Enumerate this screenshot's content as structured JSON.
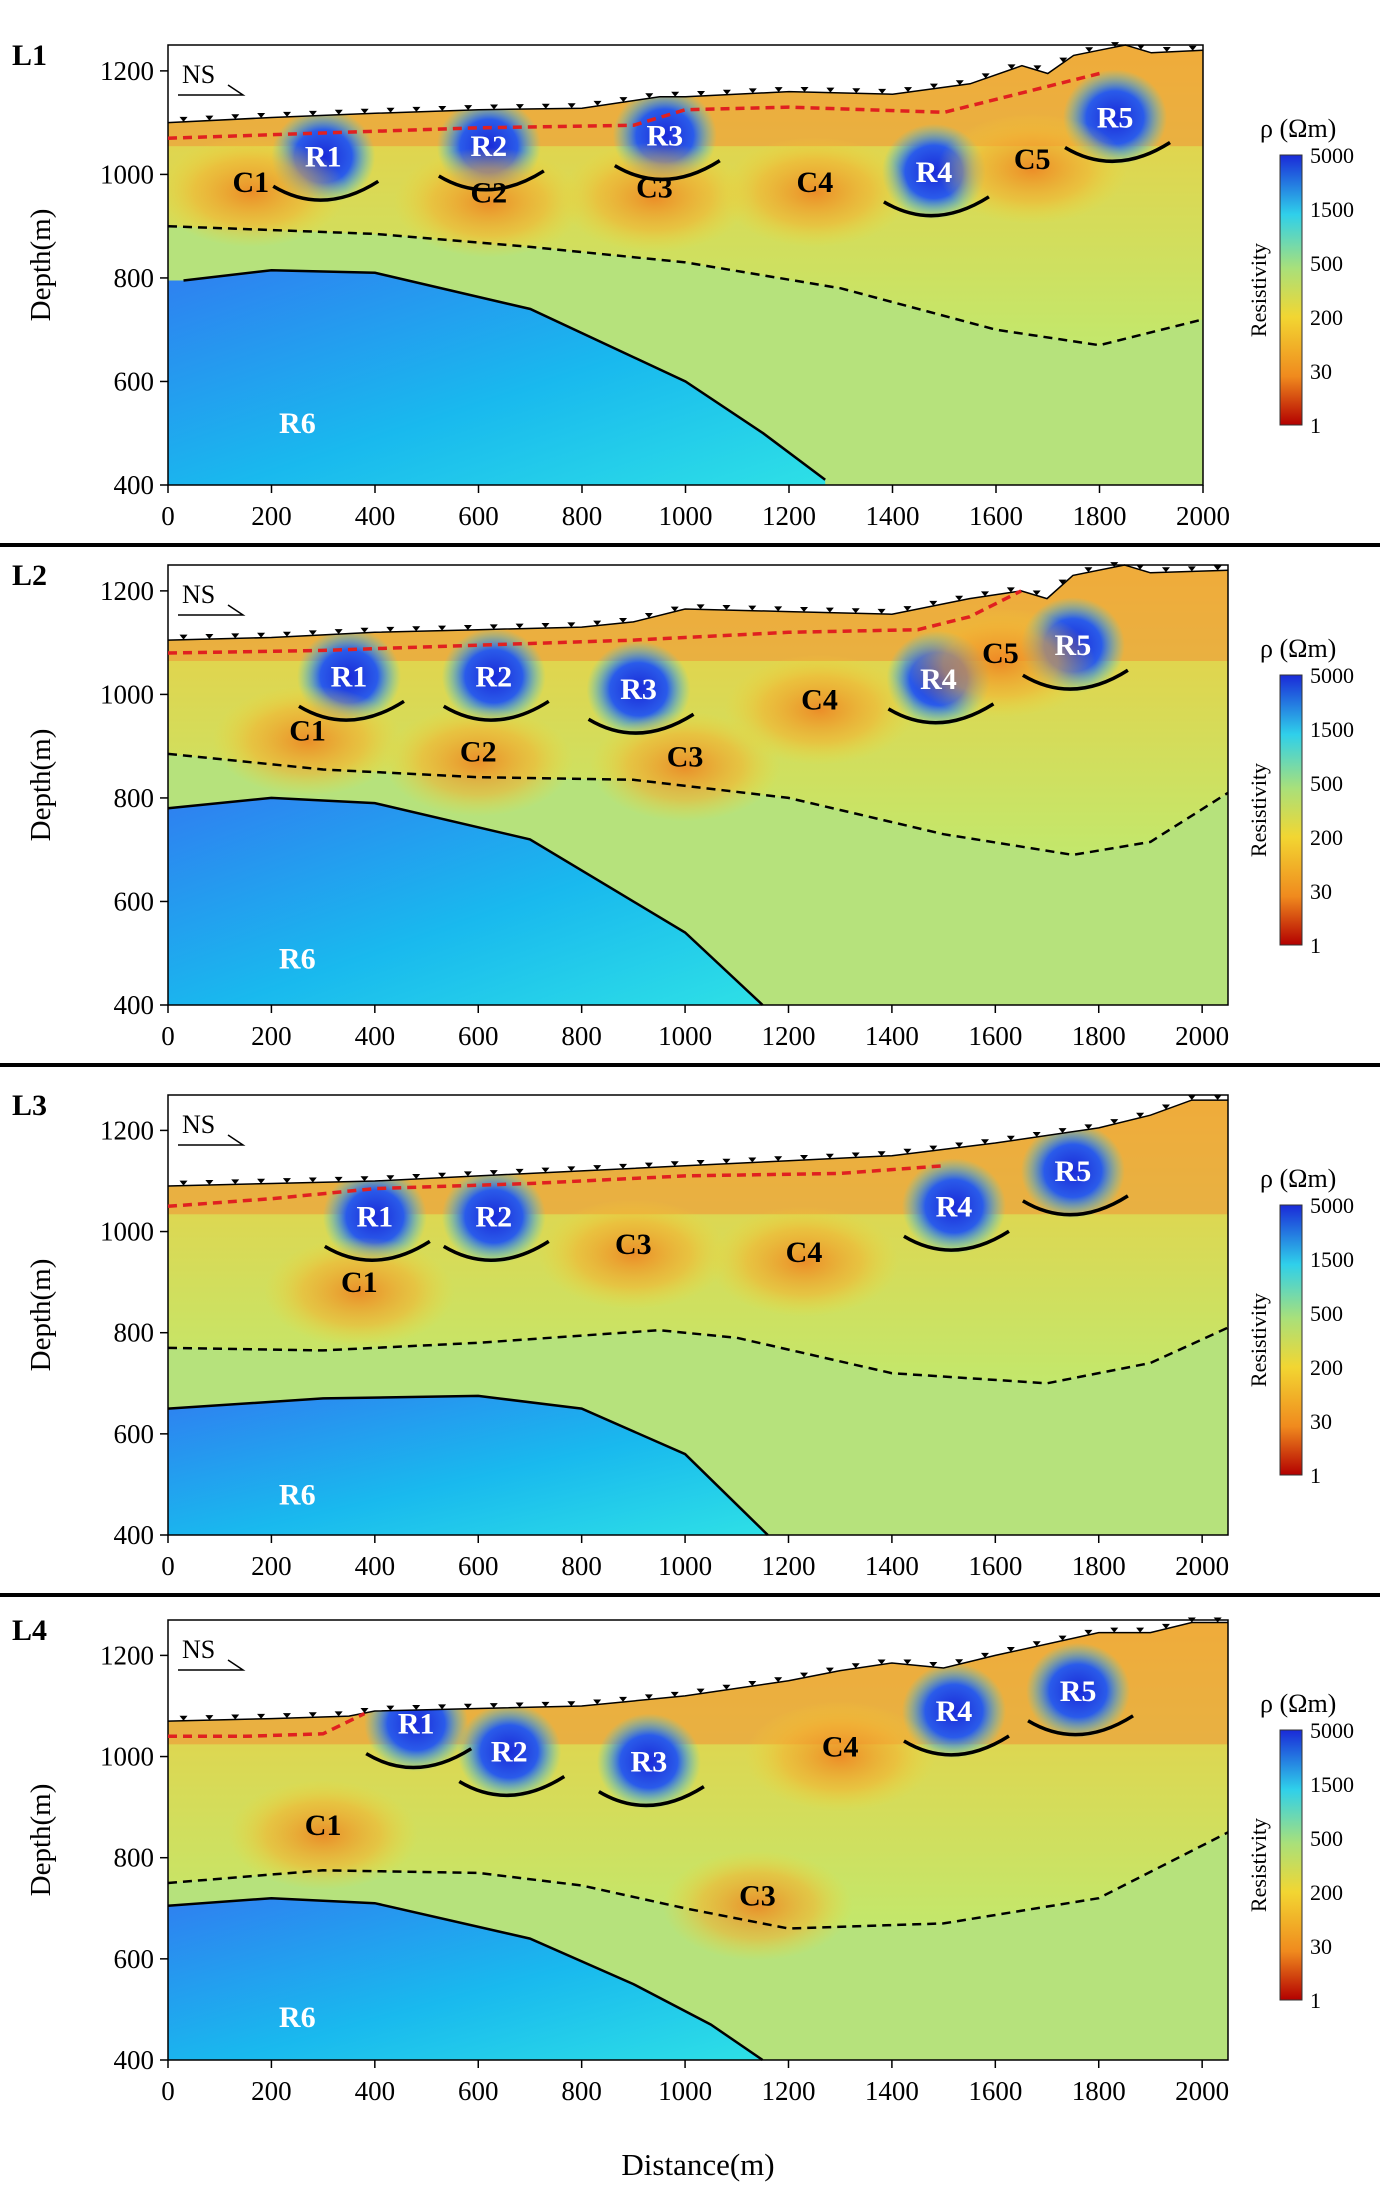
{
  "figure": {
    "x_axis_title": "Distance(m)",
    "y_axis_title": "Depth(m)",
    "colorbar_title": "ρ (Ωm)",
    "colorbar_label": "Resistivity",
    "direction_label": "NS",
    "colorbar_ticks": [
      1,
      30,
      200,
      500,
      1500,
      5000
    ],
    "colors": {
      "very_low": "#b30000",
      "low": "#f08a1e",
      "moderate": "#f2d632",
      "mid": "#a9e07a",
      "high": "#2fd0ea",
      "very_high": "#1a2ad8",
      "boundary_solid": "#000000",
      "boundary_dashed": "#000000",
      "weathering_line": "#e02020"
    }
  },
  "chart_data": [
    {
      "type": "heatmap",
      "id": "L1",
      "title": "L1",
      "xlabel": "Distance(m)",
      "ylabel": "Depth(m)",
      "xlim": [
        0,
        2000
      ],
      "ylim": [
        400,
        1250
      ],
      "x_ticks": [
        0,
        200,
        400,
        600,
        800,
        1000,
        1200,
        1400,
        1600,
        1800,
        2000
      ],
      "y_ticks": [
        400,
        600,
        800,
        1000,
        1200
      ],
      "topography": [
        [
          0,
          1100
        ],
        [
          200,
          1110
        ],
        [
          400,
          1118
        ],
        [
          600,
          1125
        ],
        [
          800,
          1128
        ],
        [
          950,
          1150
        ],
        [
          1000,
          1150
        ],
        [
          1200,
          1160
        ],
        [
          1400,
          1155
        ],
        [
          1550,
          1175
        ],
        [
          1650,
          1210
        ],
        [
          1700,
          1195
        ],
        [
          1750,
          1230
        ],
        [
          1800,
          1240
        ],
        [
          1850,
          1250
        ],
        [
          1900,
          1235
        ],
        [
          2000,
          1240
        ]
      ],
      "weathering_boundary": [
        [
          0,
          1070
        ],
        [
          300,
          1080
        ],
        [
          600,
          1090
        ],
        [
          900,
          1095
        ],
        [
          1000,
          1125
        ],
        [
          1200,
          1130
        ],
        [
          1500,
          1120
        ],
        [
          1700,
          1170
        ],
        [
          1800,
          1195
        ]
      ],
      "deep_boundary": [
        [
          0,
          900
        ],
        [
          400,
          885
        ],
        [
          700,
          860
        ],
        [
          1000,
          830
        ],
        [
          1300,
          780
        ],
        [
          1600,
          700
        ],
        [
          1800,
          670
        ],
        [
          2000,
          720
        ]
      ],
      "bedrock_boundary": [
        [
          30,
          795
        ],
        [
          200,
          815
        ],
        [
          400,
          810
        ],
        [
          700,
          740
        ],
        [
          1000,
          600
        ],
        [
          1150,
          500
        ],
        [
          1270,
          410
        ]
      ],
      "anomalies": [
        {
          "label": "R1",
          "kind": "resistive",
          "x": 300,
          "depth": 1035
        },
        {
          "label": "R2",
          "kind": "resistive",
          "x": 620,
          "depth": 1055
        },
        {
          "label": "R3",
          "kind": "resistive",
          "x": 960,
          "depth": 1075
        },
        {
          "label": "R4",
          "kind": "resistive",
          "x": 1480,
          "depth": 1005
        },
        {
          "label": "R5",
          "kind": "resistive",
          "x": 1830,
          "depth": 1110
        },
        {
          "label": "R6",
          "kind": "resistive",
          "x": 250,
          "depth": 520
        },
        {
          "label": "C1",
          "kind": "conductive",
          "x": 160,
          "depth": 985
        },
        {
          "label": "C2",
          "kind": "conductive",
          "x": 620,
          "depth": 965
        },
        {
          "label": "C3",
          "kind": "conductive",
          "x": 940,
          "depth": 975
        },
        {
          "label": "C4",
          "kind": "conductive",
          "x": 1250,
          "depth": 985
        },
        {
          "label": "C5",
          "kind": "conductive",
          "x": 1670,
          "depth": 1030
        }
      ]
    },
    {
      "type": "heatmap",
      "id": "L2",
      "title": "L2",
      "xlabel": "Distance(m)",
      "ylabel": "Depth(m)",
      "xlim": [
        0,
        2050
      ],
      "ylim": [
        400,
        1250
      ],
      "x_ticks": [
        0,
        200,
        400,
        600,
        800,
        1000,
        1200,
        1400,
        1600,
        1800,
        2000
      ],
      "y_ticks": [
        400,
        600,
        800,
        1000,
        1200
      ],
      "topography": [
        [
          0,
          1105
        ],
        [
          200,
          1110
        ],
        [
          400,
          1120
        ],
        [
          600,
          1125
        ],
        [
          800,
          1130
        ],
        [
          900,
          1140
        ],
        [
          1000,
          1165
        ],
        [
          1200,
          1160
        ],
        [
          1400,
          1155
        ],
        [
          1550,
          1185
        ],
        [
          1650,
          1200
        ],
        [
          1700,
          1185
        ],
        [
          1750,
          1230
        ],
        [
          1850,
          1250
        ],
        [
          1900,
          1235
        ],
        [
          2050,
          1240
        ]
      ],
      "weathering_boundary": [
        [
          0,
          1080
        ],
        [
          300,
          1085
        ],
        [
          600,
          1095
        ],
        [
          900,
          1105
        ],
        [
          1200,
          1120
        ],
        [
          1450,
          1125
        ],
        [
          1550,
          1150
        ],
        [
          1650,
          1200
        ]
      ],
      "deep_boundary": [
        [
          0,
          885
        ],
        [
          300,
          855
        ],
        [
          600,
          840
        ],
        [
          900,
          835
        ],
        [
          1200,
          800
        ],
        [
          1500,
          730
        ],
        [
          1750,
          690
        ],
        [
          1900,
          715
        ],
        [
          2050,
          810
        ]
      ],
      "bedrock_boundary": [
        [
          0,
          780
        ],
        [
          200,
          800
        ],
        [
          400,
          790
        ],
        [
          700,
          720
        ],
        [
          1000,
          540
        ],
        [
          1150,
          400
        ]
      ],
      "anomalies": [
        {
          "label": "R1",
          "kind": "resistive",
          "x": 350,
          "depth": 1035
        },
        {
          "label": "R2",
          "kind": "resistive",
          "x": 630,
          "depth": 1035
        },
        {
          "label": "R3",
          "kind": "resistive",
          "x": 910,
          "depth": 1010
        },
        {
          "label": "R4",
          "kind": "resistive",
          "x": 1490,
          "depth": 1030
        },
        {
          "label": "R5",
          "kind": "resistive",
          "x": 1750,
          "depth": 1095
        },
        {
          "label": "R6",
          "kind": "resistive",
          "x": 250,
          "depth": 490
        },
        {
          "label": "C1",
          "kind": "conductive",
          "x": 270,
          "depth": 930
        },
        {
          "label": "C2",
          "kind": "conductive",
          "x": 600,
          "depth": 890
        },
        {
          "label": "C3",
          "kind": "conductive",
          "x": 1000,
          "depth": 880
        },
        {
          "label": "C4",
          "kind": "conductive",
          "x": 1260,
          "depth": 990
        },
        {
          "label": "C5",
          "kind": "conductive",
          "x": 1610,
          "depth": 1080
        }
      ]
    },
    {
      "type": "heatmap",
      "id": "L3",
      "title": "L3",
      "xlabel": "Distance(m)",
      "ylabel": "Depth(m)",
      "xlim": [
        0,
        2050
      ],
      "ylim": [
        400,
        1270
      ],
      "x_ticks": [
        0,
        200,
        400,
        600,
        800,
        1000,
        1200,
        1400,
        1600,
        1800,
        2000
      ],
      "y_ticks": [
        400,
        600,
        800,
        1000,
        1200
      ],
      "topography": [
        [
          0,
          1090
        ],
        [
          200,
          1095
        ],
        [
          400,
          1100
        ],
        [
          600,
          1110
        ],
        [
          800,
          1120
        ],
        [
          1000,
          1130
        ],
        [
          1200,
          1140
        ],
        [
          1400,
          1150
        ],
        [
          1600,
          1175
        ],
        [
          1800,
          1205
        ],
        [
          1900,
          1230
        ],
        [
          1980,
          1260
        ],
        [
          2050,
          1260
        ]
      ],
      "weathering_boundary": [
        [
          0,
          1050
        ],
        [
          200,
          1065
        ],
        [
          400,
          1085
        ],
        [
          700,
          1095
        ],
        [
          1000,
          1110
        ],
        [
          1300,
          1115
        ],
        [
          1500,
          1130
        ]
      ],
      "deep_boundary": [
        [
          0,
          770
        ],
        [
          300,
          765
        ],
        [
          600,
          780
        ],
        [
          950,
          805
        ],
        [
          1100,
          790
        ],
        [
          1400,
          720
        ],
        [
          1700,
          700
        ],
        [
          1900,
          740
        ],
        [
          2050,
          810
        ]
      ],
      "bedrock_boundary": [
        [
          0,
          650
        ],
        [
          300,
          670
        ],
        [
          600,
          675
        ],
        [
          800,
          650
        ],
        [
          1000,
          560
        ],
        [
          1100,
          460
        ],
        [
          1160,
          400
        ]
      ],
      "anomalies": [
        {
          "label": "R1",
          "kind": "resistive",
          "x": 400,
          "depth": 1030
        },
        {
          "label": "R2",
          "kind": "resistive",
          "x": 630,
          "depth": 1030
        },
        {
          "label": "R4",
          "kind": "resistive",
          "x": 1520,
          "depth": 1050
        },
        {
          "label": "R5",
          "kind": "resistive",
          "x": 1750,
          "depth": 1120
        },
        {
          "label": "R6",
          "kind": "resistive",
          "x": 250,
          "depth": 480
        },
        {
          "label": "C1",
          "kind": "conductive",
          "x": 370,
          "depth": 900
        },
        {
          "label": "C3",
          "kind": "conductive",
          "x": 900,
          "depth": 975
        },
        {
          "label": "C4",
          "kind": "conductive",
          "x": 1230,
          "depth": 960
        }
      ]
    },
    {
      "type": "heatmap",
      "id": "L4",
      "title": "L4",
      "xlabel": "Distance(m)",
      "ylabel": "Depth(m)",
      "xlim": [
        0,
        2050
      ],
      "ylim": [
        400,
        1270
      ],
      "x_ticks": [
        0,
        200,
        400,
        600,
        800,
        1000,
        1200,
        1400,
        1600,
        1800,
        2000
      ],
      "y_ticks": [
        400,
        600,
        800,
        1000,
        1200
      ],
      "topography": [
        [
          0,
          1070
        ],
        [
          200,
          1075
        ],
        [
          350,
          1080
        ],
        [
          400,
          1090
        ],
        [
          600,
          1095
        ],
        [
          800,
          1100
        ],
        [
          1000,
          1120
        ],
        [
          1200,
          1150
        ],
        [
          1300,
          1170
        ],
        [
          1400,
          1185
        ],
        [
          1500,
          1175
        ],
        [
          1600,
          1200
        ],
        [
          1800,
          1245
        ],
        [
          1900,
          1245
        ],
        [
          1980,
          1265
        ],
        [
          2050,
          1265
        ]
      ],
      "weathering_boundary": [
        [
          0,
          1040
        ],
        [
          150,
          1040
        ],
        [
          300,
          1045
        ],
        [
          380,
          1085
        ]
      ],
      "deep_boundary": [
        [
          0,
          750
        ],
        [
          300,
          775
        ],
        [
          600,
          770
        ],
        [
          800,
          745
        ],
        [
          1000,
          700
        ],
        [
          1200,
          660
        ],
        [
          1500,
          670
        ],
        [
          1800,
          720
        ],
        [
          2050,
          850
        ]
      ],
      "bedrock_boundary": [
        [
          0,
          705
        ],
        [
          200,
          720
        ],
        [
          400,
          710
        ],
        [
          700,
          640
        ],
        [
          900,
          550
        ],
        [
          1050,
          470
        ],
        [
          1150,
          400
        ]
      ],
      "anomalies": [
        {
          "label": "R1",
          "kind": "resistive",
          "x": 480,
          "depth": 1065
        },
        {
          "label": "R2",
          "kind": "resistive",
          "x": 660,
          "depth": 1010
        },
        {
          "label": "R3",
          "kind": "resistive",
          "x": 930,
          "depth": 990
        },
        {
          "label": "R4",
          "kind": "resistive",
          "x": 1520,
          "depth": 1090
        },
        {
          "label": "R5",
          "kind": "resistive",
          "x": 1760,
          "depth": 1130
        },
        {
          "label": "R6",
          "kind": "resistive",
          "x": 250,
          "depth": 485
        },
        {
          "label": "C1",
          "kind": "conductive",
          "x": 300,
          "depth": 865
        },
        {
          "label": "C3",
          "kind": "conductive",
          "x": 1140,
          "depth": 725
        },
        {
          "label": "C4",
          "kind": "conductive",
          "x": 1300,
          "depth": 1020
        }
      ]
    }
  ]
}
